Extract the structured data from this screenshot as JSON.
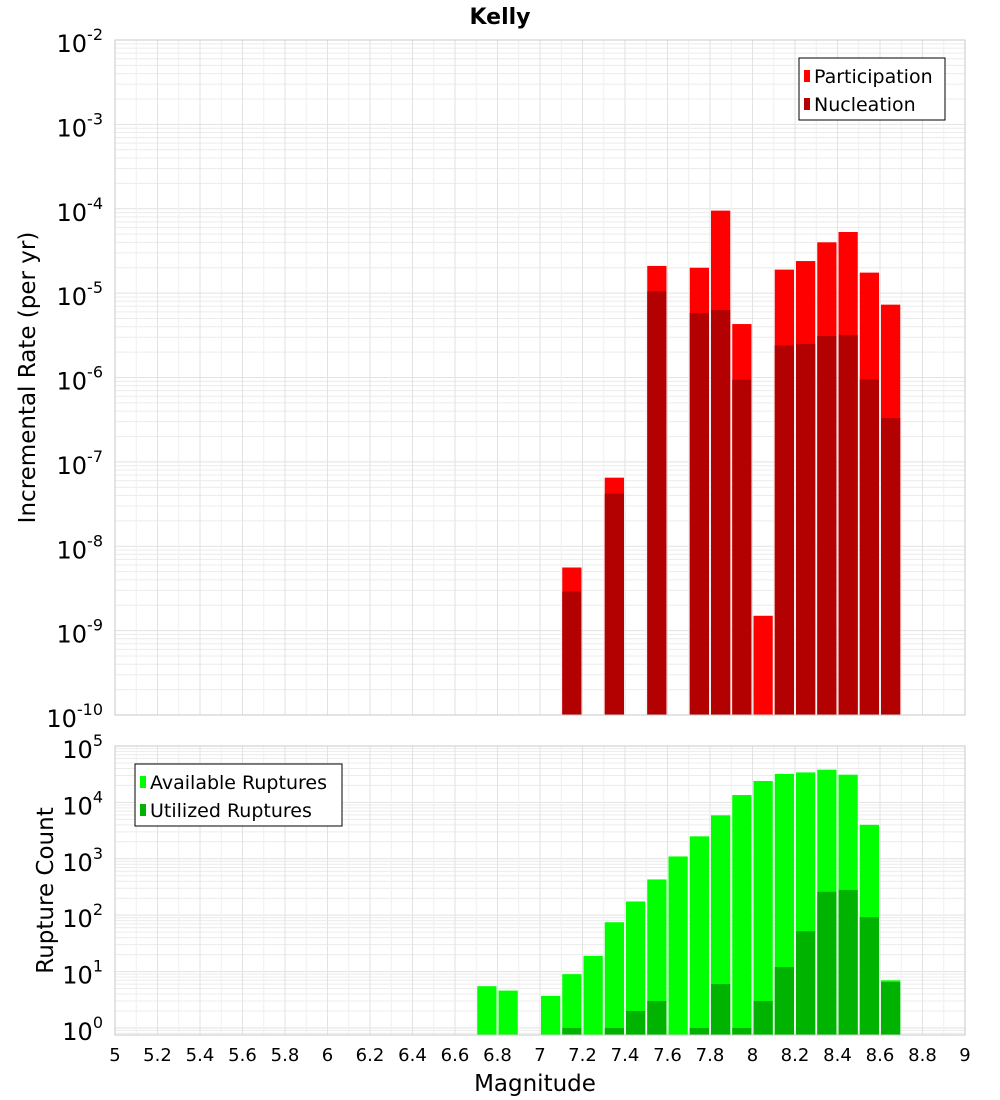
{
  "title": "Kelly",
  "chart_data": [
    {
      "type": "bar",
      "name": "rate-panel",
      "ylabel": "Incremental Rate (per yr)",
      "yscale": "log",
      "ylim": [
        1e-10,
        0.01
      ],
      "xlim": [
        5,
        9
      ],
      "bar_width": 0.1,
      "legend_position": "top-right",
      "y_ticks": [
        {
          "base": "10",
          "exp": "-2"
        },
        {
          "base": "10",
          "exp": "-3"
        },
        {
          "base": "10",
          "exp": "-4"
        },
        {
          "base": "10",
          "exp": "-5"
        },
        {
          "base": "10",
          "exp": "-6"
        },
        {
          "base": "10",
          "exp": "-7"
        },
        {
          "base": "10",
          "exp": "-8"
        },
        {
          "base": "10",
          "exp": "-9"
        },
        {
          "base": "10",
          "exp": "-10"
        }
      ],
      "series": [
        {
          "name": "Participation",
          "color": "#ff0000",
          "x": [
            7.15,
            7.35,
            7.55,
            7.75,
            7.85,
            7.95,
            8.05,
            8.15,
            8.25,
            8.35,
            8.45,
            8.55,
            8.65
          ],
          "values": [
            5.6e-09,
            6.5e-08,
            2.1e-05,
            2e-05,
            9.5e-05,
            4.3e-06,
            1.5e-09,
            1.9e-05,
            2.4e-05,
            4e-05,
            5.3e-05,
            1.75e-05,
            7.3e-06
          ]
        },
        {
          "name": "Nucleation",
          "color": "#b30000",
          "x": [
            7.15,
            7.35,
            7.55,
            7.75,
            7.85,
            7.95,
            8.15,
            8.25,
            8.35,
            8.45,
            8.55,
            8.65
          ],
          "values": [
            2.9e-09,
            4.2e-08,
            1.05e-05,
            5.8e-06,
            6.3e-06,
            9.4e-07,
            2.4e-06,
            2.5e-06,
            3.1e-06,
            3.2e-06,
            9.5e-07,
            3.3e-07
          ]
        }
      ]
    },
    {
      "type": "bar",
      "name": "count-panel",
      "ylabel": "Rupture Count",
      "xlabel": "Magnitude",
      "yscale": "log",
      "ylim": [
        0.75,
        100000
      ],
      "xlim": [
        5,
        9
      ],
      "bar_width": 0.1,
      "legend_position": "top-left",
      "x_ticks": [
        "5",
        "5.2",
        "5.4",
        "5.6",
        "5.8",
        "6",
        "6.2",
        "6.4",
        "6.6",
        "6.8",
        "7",
        "7.2",
        "7.4",
        "7.6",
        "7.8",
        "8",
        "8.2",
        "8.4",
        "8.6",
        "8.8",
        "9"
      ],
      "y_ticks": [
        {
          "base": "10",
          "exp": "5"
        },
        {
          "base": "10",
          "exp": "4"
        },
        {
          "base": "10",
          "exp": "3"
        },
        {
          "base": "10",
          "exp": "2"
        },
        {
          "base": "10",
          "exp": "1"
        },
        {
          "base": "10",
          "exp": "0"
        }
      ],
      "series": [
        {
          "name": "Available Ruptures",
          "color": "#00ff00",
          "x": [
            6.75,
            6.85,
            7.05,
            7.15,
            7.25,
            7.35,
            7.45,
            7.55,
            7.65,
            7.75,
            7.85,
            7.95,
            8.05,
            8.15,
            8.25,
            8.35,
            8.45,
            8.55,
            8.65
          ],
          "values": [
            5.5,
            4.6,
            3.7,
            9,
            19,
            75,
            175,
            430,
            1100,
            2500,
            5900,
            13500,
            24000,
            32000,
            34000,
            38000,
            31000,
            4000,
            7
          ]
        },
        {
          "name": "Utilized Ruptures",
          "color": "#00b300",
          "x": [
            7.15,
            7.35,
            7.45,
            7.55,
            7.75,
            7.85,
            7.95,
            8.05,
            8.15,
            8.25,
            8.35,
            8.45,
            8.55,
            8.65
          ],
          "values": [
            1,
            1,
            2,
            3,
            1,
            6,
            1,
            3,
            12,
            52,
            260,
            280,
            92,
            6.5
          ]
        }
      ]
    }
  ]
}
